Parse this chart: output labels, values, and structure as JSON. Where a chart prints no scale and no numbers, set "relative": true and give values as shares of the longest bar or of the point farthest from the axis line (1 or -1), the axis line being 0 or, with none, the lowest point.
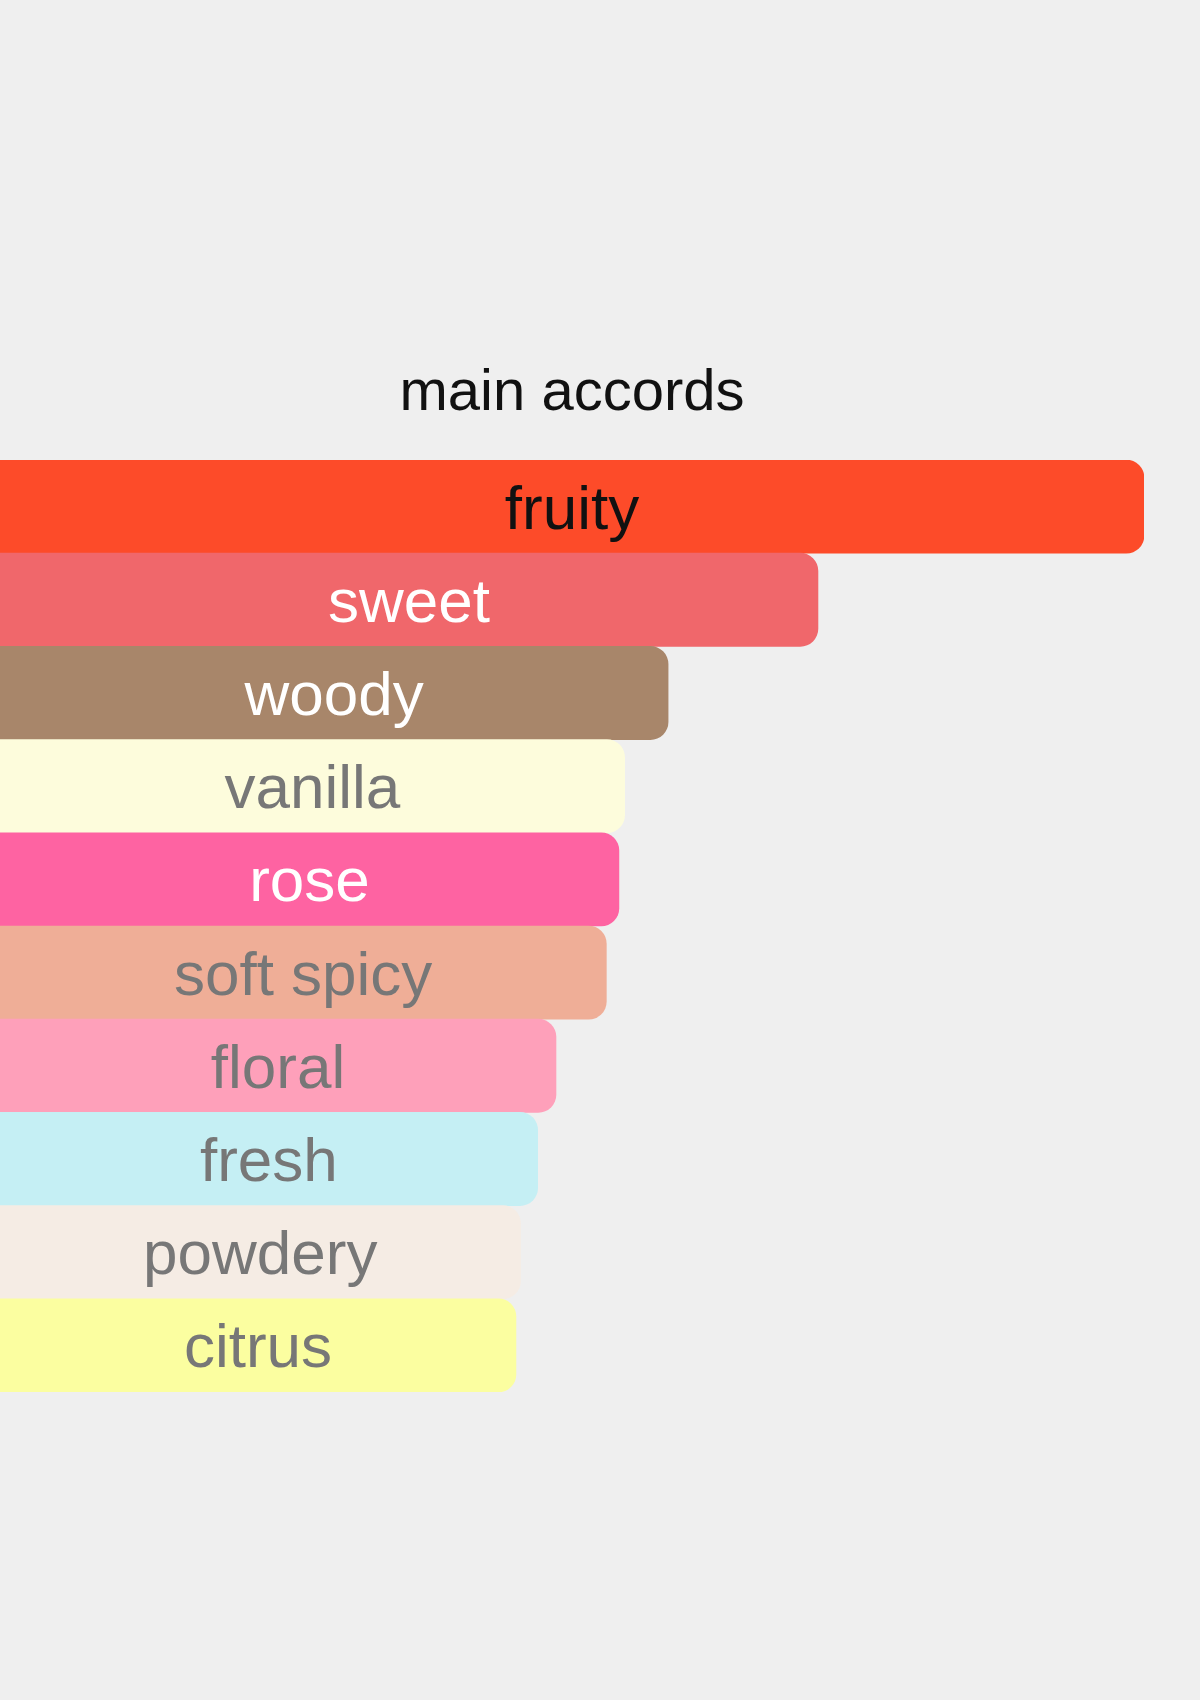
{
  "chart_data": {
    "type": "bar",
    "title": "main accords",
    "orientation": "horizontal",
    "relative": true,
    "categories": [
      "fruity",
      "sweet",
      "woody",
      "vanilla",
      "rose",
      "soft spicy",
      "floral",
      "fresh",
      "powdery",
      "citrus"
    ],
    "values": [
      1,
      0.715,
      0.584,
      0.546,
      0.541,
      0.53,
      0.486,
      0.47,
      0.455,
      0.451
    ],
    "colors": [
      "#fd4b29",
      "#f0676b",
      "#a8866a",
      "#fdfcdc",
      "#fe63a2",
      "#efae97",
      "#fea0ba",
      "#c5eff4",
      "#f5ece4",
      "#fbfea0"
    ]
  }
}
